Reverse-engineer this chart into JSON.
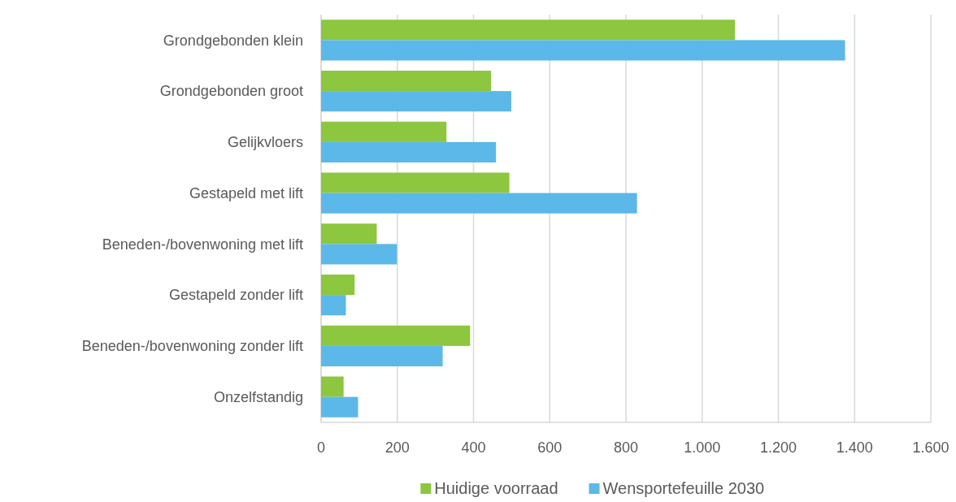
{
  "chart_data": {
    "type": "bar",
    "orientation": "horizontal",
    "categories": [
      "Grondgebonden klein",
      "Grondgebonden groot",
      "Gelijkvloers",
      "Gestapeld met lift",
      "Beneden-/bovenwoning met lift",
      "Gestapeld zonder lift",
      "Beneden-/bovenwoning zonder lift",
      "Onzelfstandig"
    ],
    "series": [
      {
        "name": "Huidige voorraad",
        "color": "#8dc63f",
        "values": [
          1086,
          446,
          329,
          494,
          146,
          88,
          391,
          59
        ]
      },
      {
        "name": "Wensportefeuille 2030",
        "color": "#5bb8e8",
        "values": [
          1375,
          499,
          459,
          829,
          199,
          65,
          319,
          97
        ]
      }
    ],
    "xlim": [
      0,
      1600
    ],
    "xticks": [
      0,
      200,
      400,
      600,
      800,
      {
        "value": 1000,
        "label": "1.000"
      },
      {
        "value": 1200,
        "label": "1.200"
      },
      {
        "value": 1400,
        "label": "1.400"
      },
      {
        "value": 1600,
        "label": "1.600"
      }
    ],
    "grid": "x",
    "legend": "bottom"
  }
}
